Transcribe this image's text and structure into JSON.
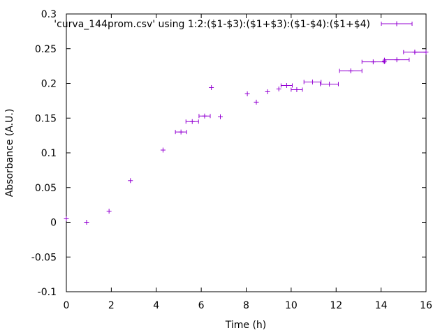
{
  "chart_data": {
    "type": "scatter",
    "xlabel": "Time (h)",
    "ylabel": "Absorbance (A.U.)",
    "xlim": [
      0,
      16
    ],
    "ylim": [
      -0.1,
      0.3
    ],
    "xticks": [
      0,
      2,
      4,
      6,
      8,
      10,
      12,
      14,
      16
    ],
    "xtick_labels": [
      "0",
      "2",
      "4",
      "6",
      "8",
      "10",
      "12",
      "14",
      "16"
    ],
    "yticks": [
      -0.1,
      -0.05,
      0,
      0.05,
      0.1,
      0.15,
      0.2,
      0.25,
      0.3
    ],
    "ytick_labels": [
      "-0.1",
      "-0.05",
      "0",
      "0.05",
      "0.1",
      "0.15",
      "0.2",
      "0.25",
      "0.3"
    ],
    "grid": false,
    "legend_position": "top-right",
    "series": [
      {
        "name": "'curva_144prom.csv' using 1:2:($1-$3):($1+$3):($1-$4):($1+$4)",
        "color": "#9400d3",
        "points": [
          {
            "x": 0.0,
            "y": 0.005,
            "xerr": 0.05
          },
          {
            "x": 0.9,
            "y": 0.0,
            "xerr": 0.03
          },
          {
            "x": 1.9,
            "y": 0.016,
            "xerr": 0.03
          },
          {
            "x": 2.85,
            "y": 0.06,
            "xerr": 0.03
          },
          {
            "x": 4.3,
            "y": 0.104,
            "xerr": 0.03
          },
          {
            "x": 5.1,
            "y": 0.13,
            "xerr": 0.25
          },
          {
            "x": 5.6,
            "y": 0.145,
            "xerr": 0.28
          },
          {
            "x": 6.15,
            "y": 0.153,
            "xerr": 0.25
          },
          {
            "x": 6.45,
            "y": 0.194,
            "xerr": 0.03
          },
          {
            "x": 6.85,
            "y": 0.152,
            "xerr": 0.03
          },
          {
            "x": 8.05,
            "y": 0.185,
            "xerr": 0.03
          },
          {
            "x": 8.45,
            "y": 0.173,
            "xerr": 0.03
          },
          {
            "x": 8.95,
            "y": 0.188,
            "xerr": 0.03
          },
          {
            "x": 9.45,
            "y": 0.192,
            "xerr": 0.03
          },
          {
            "x": 9.8,
            "y": 0.197,
            "xerr": 0.25
          },
          {
            "x": 10.25,
            "y": 0.191,
            "xerr": 0.25
          },
          {
            "x": 10.95,
            "y": 0.202,
            "xerr": 0.38
          },
          {
            "x": 11.7,
            "y": 0.199,
            "xerr": 0.4
          },
          {
            "x": 12.65,
            "y": 0.218,
            "xerr": 0.5
          },
          {
            "x": 13.65,
            "y": 0.231,
            "xerr": 0.5
          },
          {
            "x": 14.15,
            "y": 0.232,
            "xerr": 0.05
          },
          {
            "x": 14.7,
            "y": 0.234,
            "xerr": 0.55
          },
          {
            "x": 15.5,
            "y": 0.245,
            "xerr": 0.5
          },
          {
            "x": 16.0,
            "y": 0.245,
            "xerr": 0.5
          }
        ]
      }
    ]
  }
}
